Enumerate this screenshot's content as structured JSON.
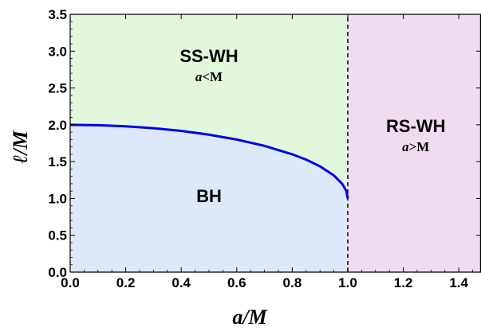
{
  "chart_data": {
    "type": "area",
    "title": "",
    "xlabel": "a/M",
    "ylabel": "ℓ/M",
    "xlim": [
      0,
      1.48
    ],
    "ylim": [
      0,
      3.5
    ],
    "x_ticks": [
      "0.0",
      "0.2",
      "0.4",
      "0.6",
      "0.8",
      "1.0",
      "1.2",
      "1.4"
    ],
    "y_ticks": [
      "0.0",
      "0.5",
      "1.0",
      "1.5",
      "2.0",
      "2.5",
      "3.0",
      "3.5"
    ],
    "boundary_curve": {
      "x": [
        0.0,
        0.1,
        0.2,
        0.3,
        0.4,
        0.5,
        0.6,
        0.7,
        0.8,
        0.85,
        0.9,
        0.95,
        0.98,
        0.995,
        1.0
      ],
      "y": [
        2.0,
        1.995,
        1.98,
        1.954,
        1.917,
        1.866,
        1.8,
        1.714,
        1.6,
        1.527,
        1.436,
        1.312,
        1.199,
        1.1,
        1.0
      ],
      "color": "#0000ee"
    },
    "divider": {
      "x": 1.0,
      "style": "dashed",
      "color": "#000000"
    },
    "regions": [
      {
        "label": "SS-WH",
        "sublabel": "a<M",
        "color": "#e3f7dc",
        "label_x": 0.5,
        "label_y": 2.85
      },
      {
        "label": "BH",
        "sublabel": "",
        "color": "#dde9fb",
        "label_x": 0.5,
        "label_y": 0.95
      },
      {
        "label": "RS-WH",
        "sublabel": "a>M",
        "color": "#f0dcf0",
        "label_x": 1.245,
        "label_y": 1.9
      }
    ],
    "grid": false
  }
}
